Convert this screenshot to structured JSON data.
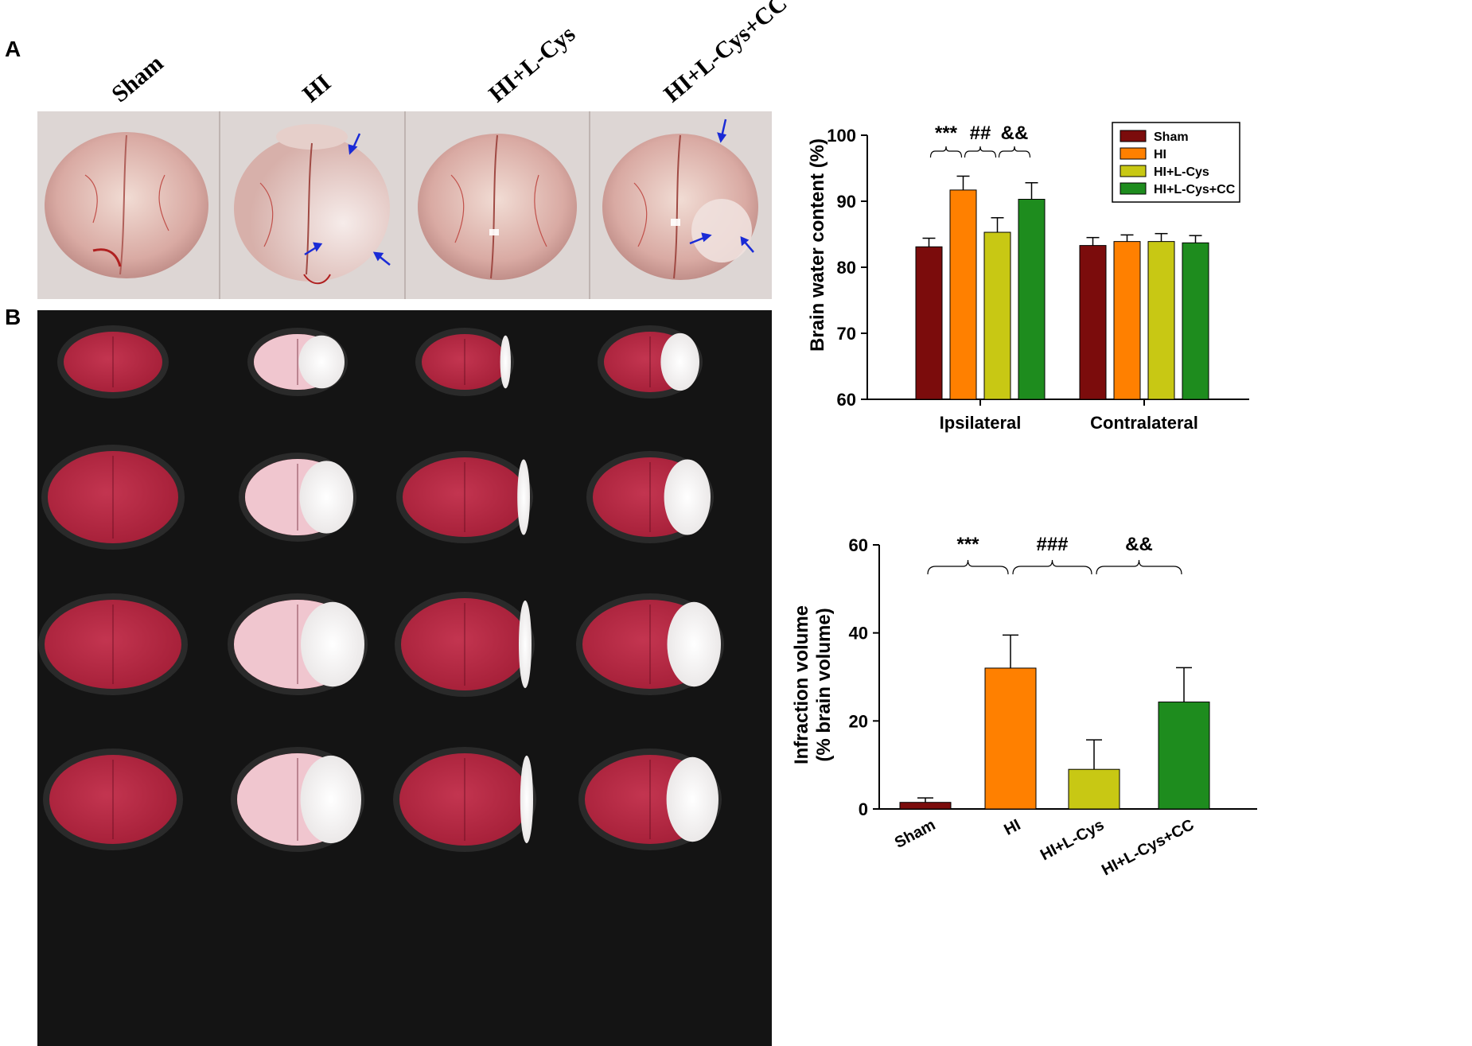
{
  "figure": {
    "panel_a_letter": "A",
    "panel_b_letter": "B",
    "group_labels": [
      "Sham",
      "HI",
      "HI+L-Cys",
      "HI+L-Cys+CC"
    ]
  },
  "colors": {
    "Sham": "#7b0c0c",
    "HI": "#ff8000",
    "HI+L-Cys": "#c8c814",
    "HI+L-Cys+CC": "#1e8c1e"
  },
  "chart_data": [
    {
      "type": "bar",
      "ylabel": "Brain water content (%)",
      "ylim": [
        60,
        100
      ],
      "yticks": [
        60,
        70,
        80,
        90,
        100
      ],
      "categories": [
        "Ipsilateral",
        "Contralateral"
      ],
      "series": [
        {
          "name": "Sham",
          "values": [
            83.1,
            83.3
          ],
          "errors": [
            1.3,
            1.2
          ]
        },
        {
          "name": "HI",
          "values": [
            91.7,
            83.9
          ],
          "errors": [
            2.1,
            1.0
          ]
        },
        {
          "name": "HI+L-Cys",
          "values": [
            85.3,
            83.9
          ],
          "errors": [
            2.2,
            1.2
          ]
        },
        {
          "name": "HI+L-Cys+CC",
          "values": [
            90.3,
            83.7
          ],
          "errors": [
            2.5,
            1.1
          ]
        }
      ],
      "legend": {
        "placement": "top-right",
        "entries": [
          "Sham",
          "HI",
          "HI+L-Cys",
          "HI+L-Cys+CC"
        ]
      },
      "annotations": [
        "***",
        "##",
        "&&"
      ]
    },
    {
      "type": "bar",
      "ylabel": "Infraction volume (% brain volume)",
      "ylabel_lines": [
        "Infraction volume",
        "(% brain volume)"
      ],
      "ylim": [
        0,
        60
      ],
      "yticks": [
        0,
        20,
        40,
        60
      ],
      "categories": [
        "Sham",
        "HI",
        "HI+L-Cys",
        "HI+L-Cys+CC"
      ],
      "values": [
        1.5,
        32.0,
        9.0,
        24.3
      ],
      "errors": [
        1.0,
        7.5,
        6.7,
        7.8
      ],
      "annotations": [
        "***",
        "###",
        "&&"
      ]
    }
  ]
}
